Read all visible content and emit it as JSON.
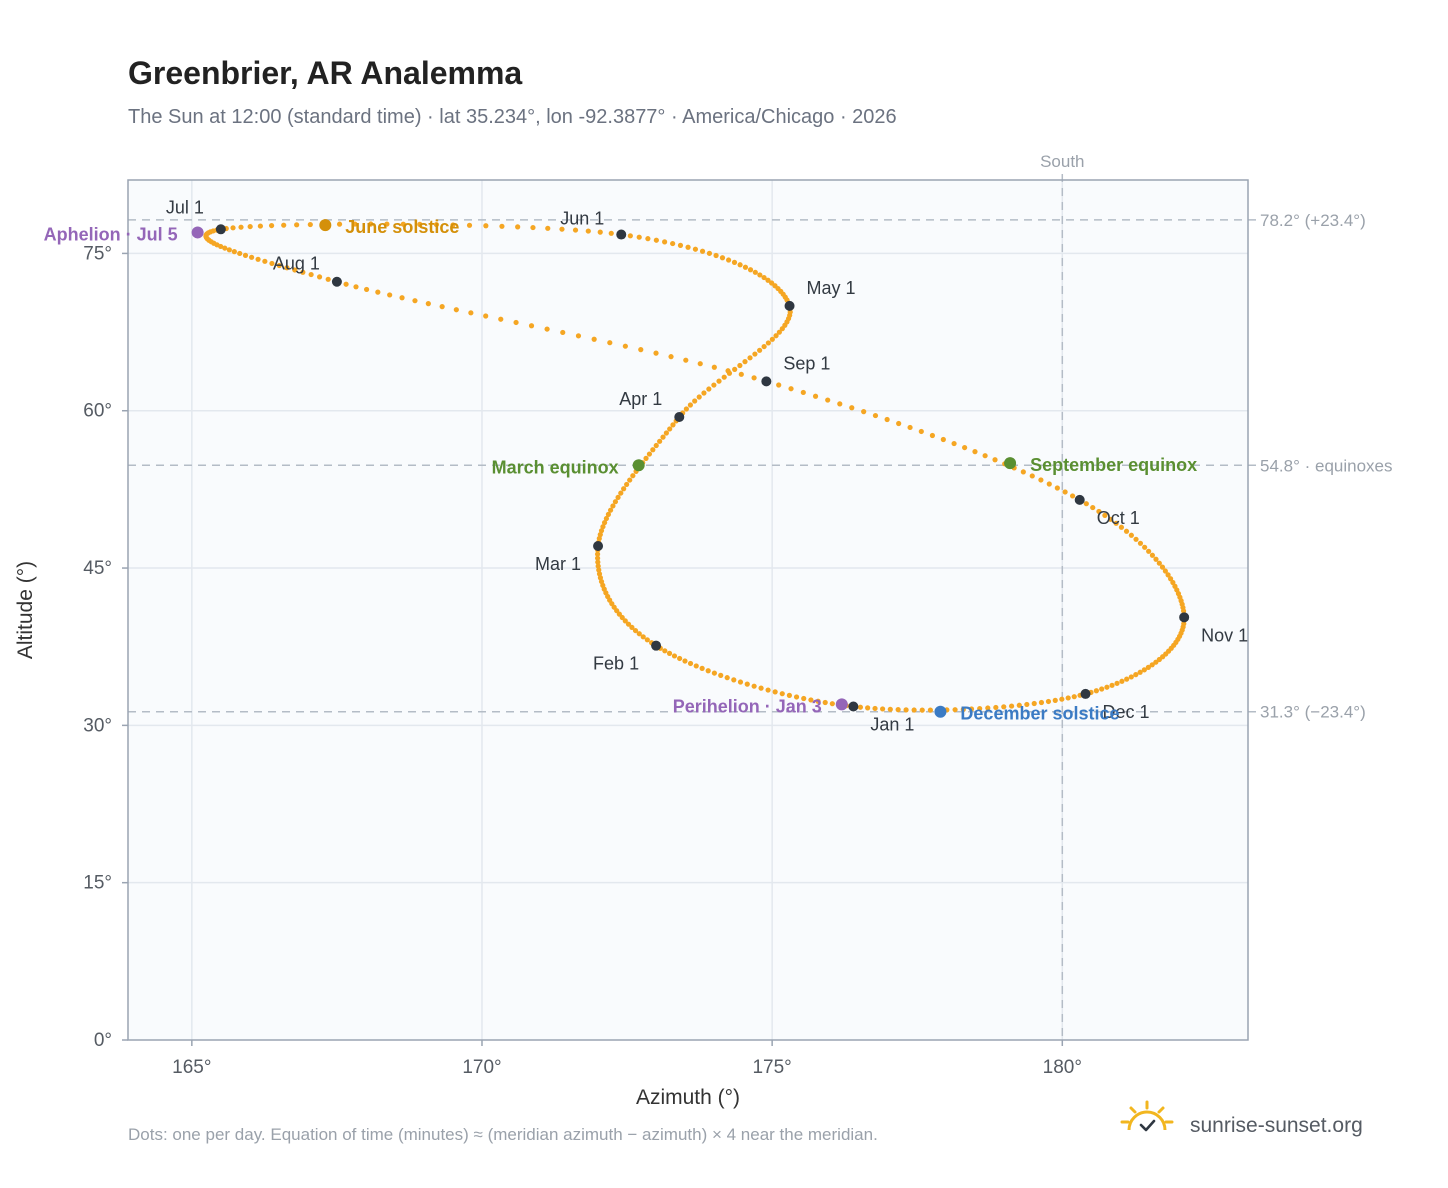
{
  "title": "Greenbrier, AR Analemma",
  "subtitle": "The Sun at 12:00 (standard time) · lat 35.234°, lon -92.3877° · America/Chicago · 2026",
  "south_label": "South",
  "footnote": "Dots: one per day. Equation of time (minutes) ≈ (meridian azimuth − azimuth) × 4 near the meridian.",
  "brand": "sunrise-sunset.org",
  "colors": {
    "curve": "#f5a623",
    "month_marker": "#2f3741",
    "solstice_june": "#d4900a",
    "equinox": "#5a8f32",
    "solstice_december": "#3b7bc4",
    "apsis": "#9466b8",
    "frame": "#9aa4b2",
    "plot_bg": "#f9fbfd",
    "grid": "#e3e8ee",
    "reference_line": "#b4bcc6"
  },
  "chart_data": {
    "type": "scatter",
    "xlabel": "Azimuth (°)",
    "ylabel": "Altitude (°)",
    "xlim": [
      163.9,
      183.2
    ],
    "ylim": [
      0,
      82
    ],
    "x_ticks": [
      165,
      170,
      175,
      180
    ],
    "x_tick_labels": [
      "165°",
      "170°",
      "175°",
      "180°"
    ],
    "y_ticks": [
      0,
      15,
      30,
      45,
      60,
      75
    ],
    "y_tick_labels": [
      "0°",
      "15°",
      "30°",
      "45°",
      "60°",
      "75°"
    ],
    "grid": true,
    "reference_lines": [
      {
        "axis": "y",
        "value": 78.2,
        "label": "78.2° (+23.4°)"
      },
      {
        "axis": "y",
        "value": 54.8,
        "label": "54.8° · equinoxes"
      },
      {
        "axis": "y",
        "value": 31.3,
        "label": "31.3° (−23.4°)"
      },
      {
        "axis": "x",
        "value": 180,
        "label": "South"
      }
    ],
    "monthly_points": [
      {
        "label": "Jan 1",
        "x": 176.4,
        "y": 31.8
      },
      {
        "label": "Feb 1",
        "x": 173.0,
        "y": 37.6
      },
      {
        "label": "Mar 1",
        "x": 172.0,
        "y": 47.1
      },
      {
        "label": "Apr 1",
        "x": 173.4,
        "y": 59.4
      },
      {
        "label": "May 1",
        "x": 175.3,
        "y": 70.0
      },
      {
        "label": "Jun 1",
        "x": 172.4,
        "y": 76.8
      },
      {
        "label": "Jul 1",
        "x": 165.5,
        "y": 77.3
      },
      {
        "label": "Aug 1",
        "x": 167.5,
        "y": 72.3
      },
      {
        "label": "Sep 1",
        "x": 174.9,
        "y": 62.8
      },
      {
        "label": "Oct 1",
        "x": 180.3,
        "y": 51.5
      },
      {
        "label": "Nov 1",
        "x": 182.1,
        "y": 40.3
      },
      {
        "label": "Dec 1",
        "x": 180.4,
        "y": 33.0
      }
    ],
    "events": [
      {
        "label": "June solstice",
        "x": 167.3,
        "y": 77.7,
        "kind": "solstice_june"
      },
      {
        "label": "March equinox",
        "x": 172.7,
        "y": 54.8,
        "kind": "equinox"
      },
      {
        "label": "September equinox",
        "x": 179.1,
        "y": 55.0,
        "kind": "equinox"
      },
      {
        "label": "December solstice",
        "x": 177.9,
        "y": 31.3,
        "kind": "solstice_december"
      },
      {
        "label": "Aphelion · Jul 5",
        "x": 165.1,
        "y": 77.0,
        "kind": "apsis"
      },
      {
        "label": "Perihelion · Jan 3",
        "x": 176.2,
        "y": 32.0,
        "kind": "apsis"
      }
    ]
  }
}
